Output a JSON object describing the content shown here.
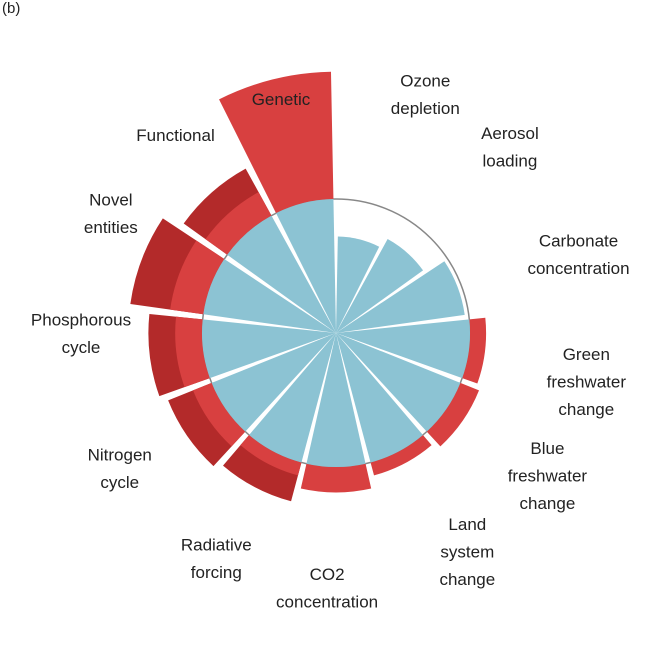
{
  "panel_label": "(b)",
  "chart_data": {
    "type": "polar-bar",
    "boundary": 1.0,
    "colors": {
      "safe": "#8cc3d3",
      "beyond": "#d84040",
      "beyond_dark": "#b32a2a",
      "boundary_line": "#888888"
    },
    "categories": [
      {
        "name": "Ozone depletion",
        "lines": [
          "Ozone",
          "depletion"
        ],
        "value": 0.72,
        "uncertain_to": null
      },
      {
        "name": "Aerosol loading",
        "lines": [
          "Aerosol",
          "loading"
        ],
        "value": 0.8,
        "uncertain_to": null
      },
      {
        "name": "Carbonate concentration",
        "lines": [
          "Carbonate",
          "concentration"
        ],
        "value": 0.97,
        "uncertain_to": null
      },
      {
        "name": "Green freshwater change",
        "lines": [
          "Green",
          "freshwater",
          "change"
        ],
        "value": 1.12,
        "uncertain_to": null
      },
      {
        "name": "Blue freshwater change",
        "lines": [
          "Blue",
          "freshwater",
          "change"
        ],
        "value": 1.15,
        "uncertain_to": null
      },
      {
        "name": "Land system change",
        "lines": [
          "Land",
          "system",
          "change"
        ],
        "value": 1.1,
        "uncertain_to": null
      },
      {
        "name": "CO2 concentration",
        "lines": [
          "CO2",
          "concentration"
        ],
        "value": 1.19,
        "uncertain_to": null
      },
      {
        "name": "Radiative forcing",
        "lines": [
          "Radiative",
          "forcing"
        ],
        "value": 1.1,
        "uncertain_to": 1.3
      },
      {
        "name": "Nitrogen cycle",
        "lines": [
          "Nitrogen",
          "cycle"
        ],
        "value": 1.15,
        "uncertain_to": 1.35
      },
      {
        "name": "Phosphorous cycle",
        "lines": [
          "Phosphorous",
          "cycle"
        ],
        "value": 1.2,
        "uncertain_to": 1.4
      },
      {
        "name": "Novel entities",
        "lines": [
          "Novel",
          "entities"
        ],
        "value": 1.25,
        "uncertain_to": 1.55
      },
      {
        "name": "Functional",
        "lines": [
          "Functional"
        ],
        "value": 1.2,
        "uncertain_to": 1.4
      },
      {
        "name": "Genetic",
        "lines": [
          "Genetic"
        ],
        "value": 1.95,
        "uncertain_to": null
      }
    ]
  }
}
